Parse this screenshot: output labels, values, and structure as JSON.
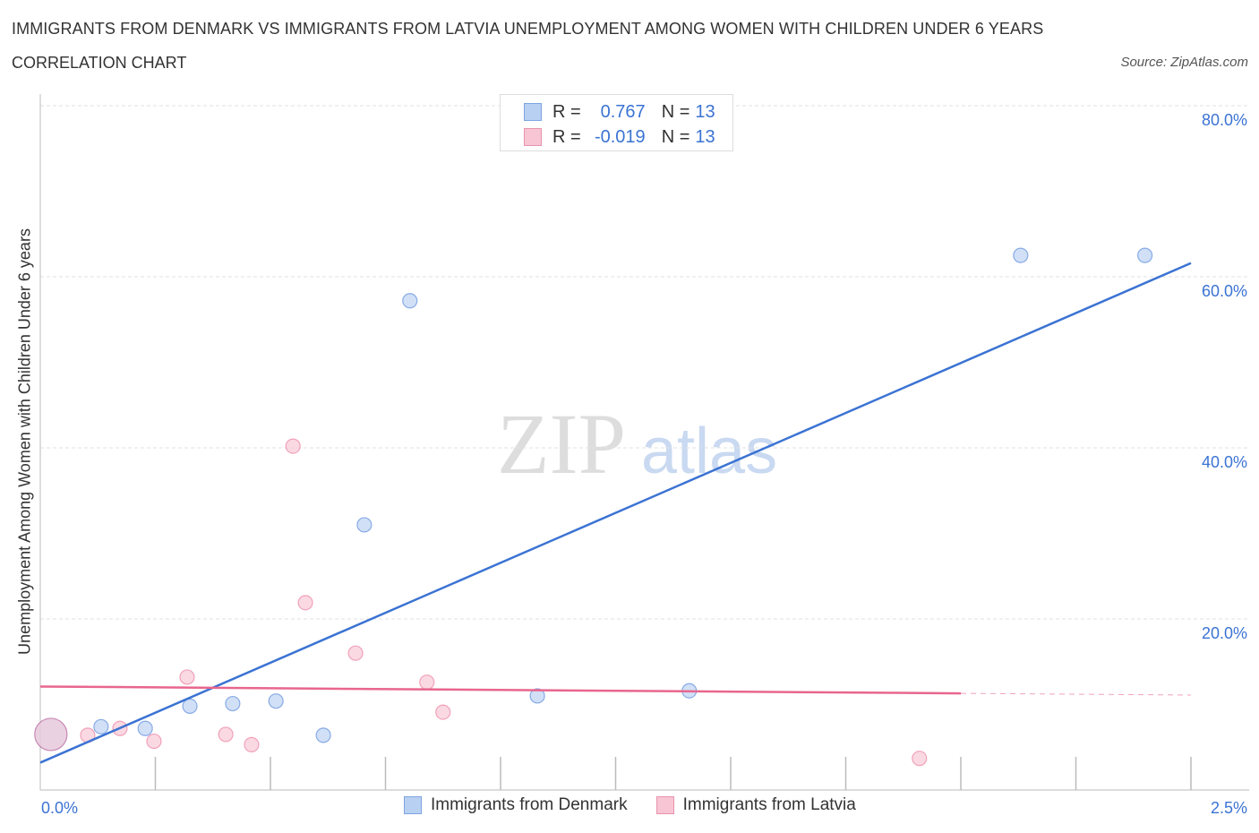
{
  "header": {
    "title": "IMMIGRANTS FROM DENMARK VS IMMIGRANTS FROM LATVIA UNEMPLOYMENT AMONG WOMEN WITH CHILDREN UNDER 6 YEARS",
    "subtitle": "CORRELATION CHART",
    "source": "Source: ZipAtlas.com"
  },
  "legend": {
    "rows": [
      {
        "r_label": "R =",
        "r_value": "0.767",
        "n_label": "N =",
        "n_value": "13"
      },
      {
        "r_label": "R =",
        "r_value": "-0.019",
        "n_label": "N =",
        "n_value": "13"
      }
    ]
  },
  "watermark": {
    "zip": "ZIP",
    "atlas": "atlas"
  },
  "chart_data": {
    "type": "scatter",
    "title": "IMMIGRANTS FROM DENMARK VS IMMIGRANTS FROM LATVIA UNEMPLOYMENT AMONG WOMEN WITH CHILDREN UNDER 6 YEARS",
    "xlabel": "",
    "ylabel": "Unemployment Among Women with Children Under 6 years",
    "xlim": [
      0,
      2.5
    ],
    "ylim": [
      0,
      80
    ],
    "x_tick_labels": [
      "0.0%",
      "2.5%"
    ],
    "y_ticks": [
      20,
      40,
      60,
      80
    ],
    "y_tick_labels": [
      "20.0%",
      "40.0%",
      "60.0%",
      "80.0%"
    ],
    "grid": true,
    "legend_position": "top-center",
    "series": [
      {
        "name": "Immigrants from Denmark",
        "color": "#3b73d3",
        "fill": "#b8d0f2",
        "points": [
          [
            0.023,
            6.5,
            "large"
          ],
          [
            0.132,
            7.4
          ],
          [
            0.228,
            7.2
          ],
          [
            0.325,
            9.8
          ],
          [
            0.418,
            10.1
          ],
          [
            0.512,
            10.4
          ],
          [
            0.615,
            6.4
          ],
          [
            0.704,
            31.0
          ],
          [
            0.803,
            57.2
          ],
          [
            1.08,
            11.0
          ],
          [
            1.41,
            11.6
          ],
          [
            2.13,
            62.5
          ],
          [
            2.4,
            62.5
          ]
        ],
        "trend": {
          "x0": 0,
          "y0": 3.2,
          "x1": 2.5,
          "y1": 61.6,
          "solid_to": 2.5
        }
      },
      {
        "name": "Immigrants from Latvia",
        "color": "#e8668e",
        "fill": "#f7c5d4",
        "points": [
          [
            0.023,
            6.5,
            "large"
          ],
          [
            0.103,
            6.4
          ],
          [
            0.173,
            7.2
          ],
          [
            0.247,
            5.7
          ],
          [
            0.319,
            13.2
          ],
          [
            0.403,
            6.5
          ],
          [
            0.459,
            5.3
          ],
          [
            0.549,
            40.2
          ],
          [
            0.576,
            21.9
          ],
          [
            0.685,
            16.0
          ],
          [
            0.84,
            12.6
          ],
          [
            0.875,
            9.1
          ],
          [
            1.91,
            3.7
          ]
        ],
        "trend": {
          "x0": 0,
          "y0": 12.1,
          "x1": 2.5,
          "y1": 11.1,
          "solid_to": 2.0
        }
      }
    ]
  }
}
